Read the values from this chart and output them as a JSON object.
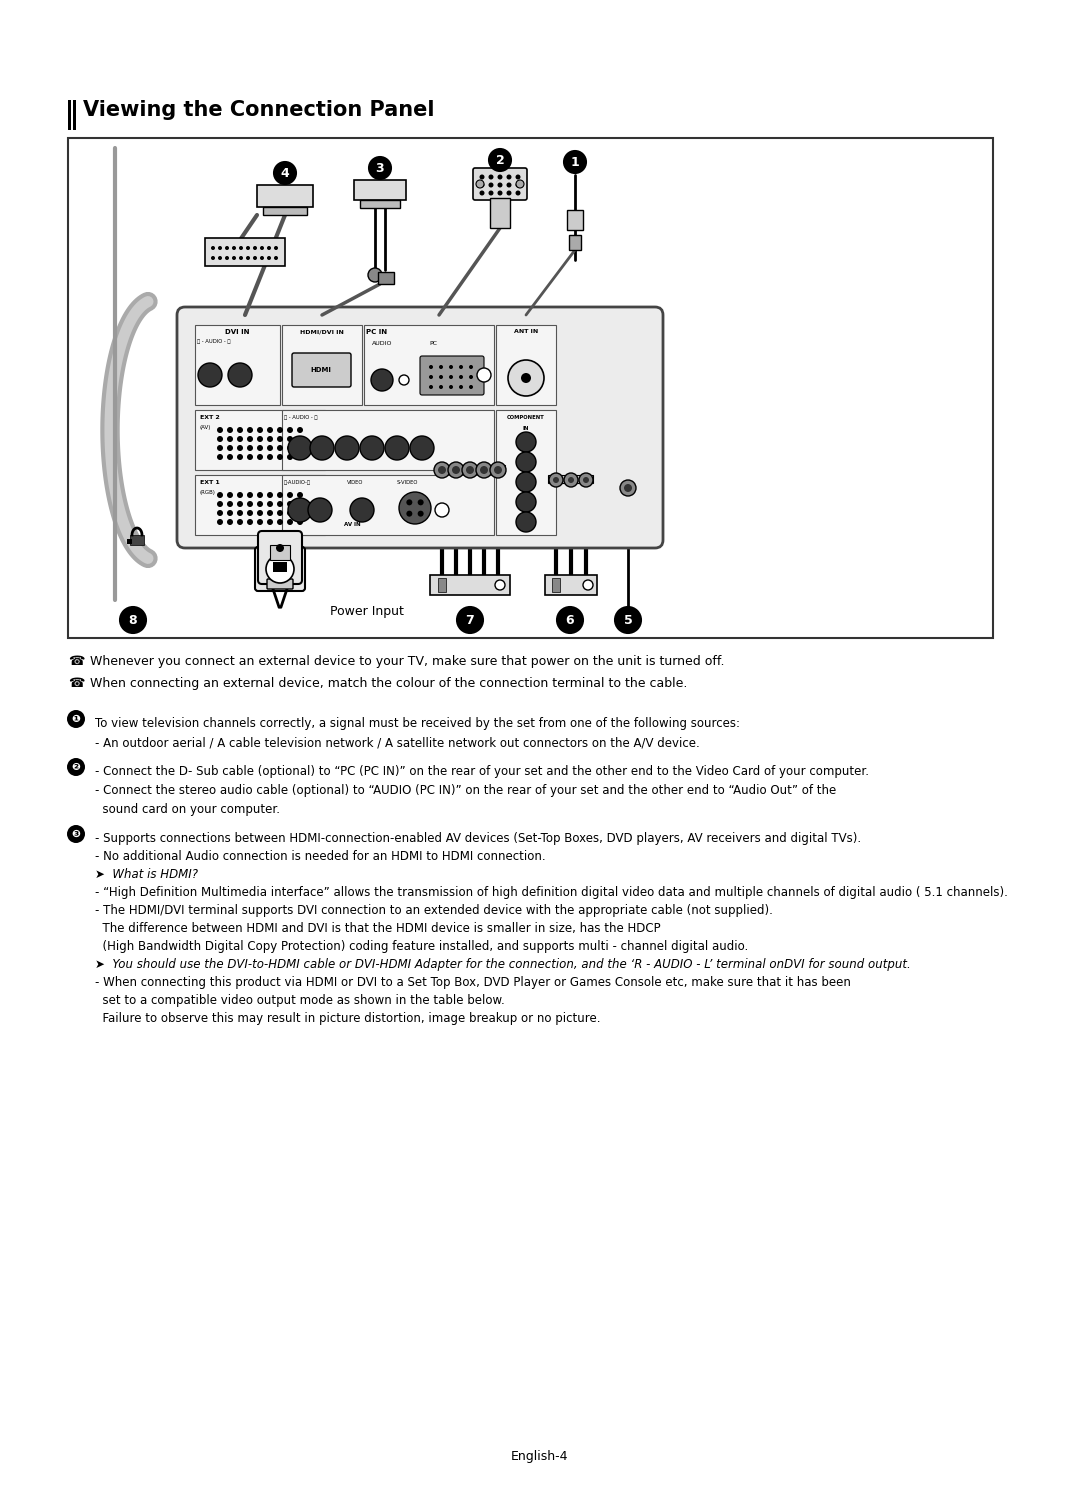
{
  "title": "Viewing the Connection Panel",
  "bg_color": "#ffffff",
  "page_number": "English-4",
  "bullet_notes": [
    "Whenever you connect an external device to your TV, make sure that power on the unit is turned off.",
    "When connecting an external device, match the colour of the connection terminal to the cable."
  ],
  "section1_lines": [
    "To view television channels correctly, a signal must be received by the set from one of the following sources:",
    "- An outdoor aerial / A cable television network / A satellite network out connectors on the A/V device."
  ],
  "section2_lines": [
    "- Connect the D- Sub cable (optional) to “PC (PC IN)” on the rear of your set and the other end to the Video Card of your computer.",
    "- Connect the stereo audio cable (optional) to “AUDIO (PC IN)” on the rear of your set and the other end to “Audio Out” of the",
    "  sound card on your computer."
  ],
  "section3_lines": [
    "- Supports connections between HDMI-connection-enabled AV devices (Set-Top Boxes, DVD players, AV receivers and digital TVs).",
    "- No additional Audio connection is needed for an HDMI to HDMI connection.",
    "➤  What is HDMI?",
    "- “High Definition Multimedia interface” allows the transmission of high definition digital video data and multiple channels of digital audio ( 5.1 channels).",
    "- The HDMI/DVI terminal supports DVI connection to an extended device with the appropriate cable (not supplied).",
    "  The difference between HDMI and DVI is that the HDMI device is smaller in size, has the HDCP",
    "  (High Bandwidth Digital Copy Protection) coding feature installed, and supports multi - channel digital audio.",
    "➤  You should use the DVI-to-HDMI cable or DVI-HDMI Adapter for the connection, and the ‘R - AUDIO - L’ terminal onDVI for sound output.",
    "- When connecting this product via HDMI or DVI to a Set Top Box, DVD Player or Games Console etc, make sure that it has been",
    "  set to a compatible video output mode as shown in the table below.",
    "  Failure to observe this may result in picture distortion, image breakup or no picture."
  ]
}
